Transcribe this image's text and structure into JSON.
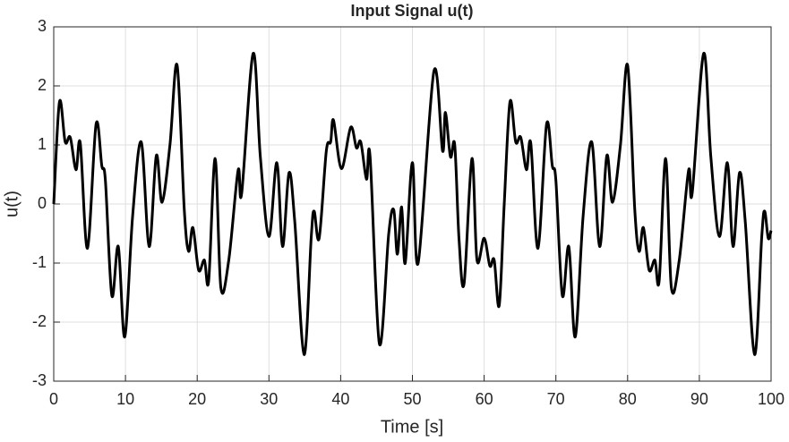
{
  "chart_data": {
    "type": "line",
    "title": "Input Signal u(t)",
    "x_label": "Time [s]",
    "y_label": "u(t)",
    "x": [
      0,
      0.8,
      1.6,
      2.3,
      3.1,
      3.7,
      4.7,
      5.9,
      6.7,
      7.2,
      8.1,
      9.0,
      9.9,
      11.0,
      12.2,
      13.3,
      14.3,
      15.1,
      16.2,
      17.2,
      18.2,
      18.8,
      19.4,
      20.2,
      21.0,
      21.6,
      22.5,
      23.3,
      24.4,
      25.7,
      26.2,
      27.8,
      28.8,
      30.0,
      31.1,
      31.9,
      32.8,
      33.6,
      34.9,
      35.9,
      36.3,
      37.0,
      38.0,
      38.6,
      39.0,
      40.1,
      41.4,
      42.2,
      42.8,
      43.6,
      44.1,
      45.4,
      46.7,
      47.4,
      47.9,
      48.5,
      49.0,
      50.0,
      50.8,
      53.0,
      54.2,
      54.6,
      55.3,
      55.9,
      56.5,
      57.2,
      58.3,
      59.0,
      60.0,
      60.8,
      61.4,
      62.1,
      62.8,
      63.6,
      64.4,
      65.1,
      65.9,
      66.5,
      67.5,
      68.7,
      69.5,
      70.0,
      70.9,
      71.8,
      72.7,
      73.8,
      75.0,
      76.1,
      77.1,
      77.9,
      79.0,
      80.0,
      81.0,
      81.6,
      82.2,
      83.0,
      83.8,
      84.4,
      85.3,
      86.1,
      87.2,
      88.5,
      89.0,
      90.6,
      91.6,
      92.8,
      93.9,
      94.7,
      95.6,
      96.4,
      97.7,
      98.7,
      99.1,
      99.6,
      100
    ],
    "values": [
      0,
      1.73,
      1.05,
      1.13,
      0.58,
      1.03,
      -0.75,
      1.35,
      0.65,
      0.4,
      -1.55,
      -0.72,
      -2.25,
      -0.2,
      1.05,
      -0.72,
      0.82,
      0.03,
      1.0,
      2.35,
      -0.1,
      -0.8,
      -0.4,
      -1.12,
      -0.95,
      -1.3,
      0.77,
      -1.42,
      -0.95,
      0.57,
      0.18,
      2.55,
      0.8,
      -0.55,
      0.7,
      -0.72,
      0.53,
      -0.3,
      -2.55,
      -0.55,
      -0.12,
      -0.58,
      0.9,
      1.05,
      1.42,
      0.6,
      1.3,
      0.95,
      1.05,
      0.42,
      0.8,
      -2.37,
      -0.5,
      -0.1,
      -0.85,
      -0.05,
      -1.0,
      0.7,
      -1.0,
      2.25,
      0.9,
      1.55,
      0.8,
      1.0,
      -0.6,
      -1.35,
      0.77,
      -0.95,
      -0.58,
      -1.05,
      -0.95,
      -1.72,
      0,
      1.73,
      1.05,
      1.13,
      0.58,
      1.03,
      -0.75,
      1.35,
      0.65,
      0.4,
      -1.55,
      -0.72,
      -2.25,
      -0.2,
      1.05,
      -0.72,
      0.82,
      0.03,
      1.0,
      2.35,
      -0.1,
      -0.8,
      -0.4,
      -1.12,
      -0.95,
      -1.3,
      0.77,
      -1.42,
      -0.95,
      0.57,
      0.18,
      2.55,
      0.8,
      -0.55,
      0.7,
      -0.72,
      0.53,
      -0.3,
      -2.55,
      -0.55,
      -0.12,
      -0.58,
      -0.45
    ],
    "color": "#000000",
    "xlim": [
      0,
      100
    ],
    "xticks": [
      0,
      10,
      20,
      30,
      40,
      50,
      60,
      70,
      80,
      90,
      100
    ],
    "ylim": [
      -3,
      3
    ],
    "yticks": [
      -3,
      -2,
      -1,
      0,
      1,
      2,
      3
    ],
    "grid": true
  }
}
